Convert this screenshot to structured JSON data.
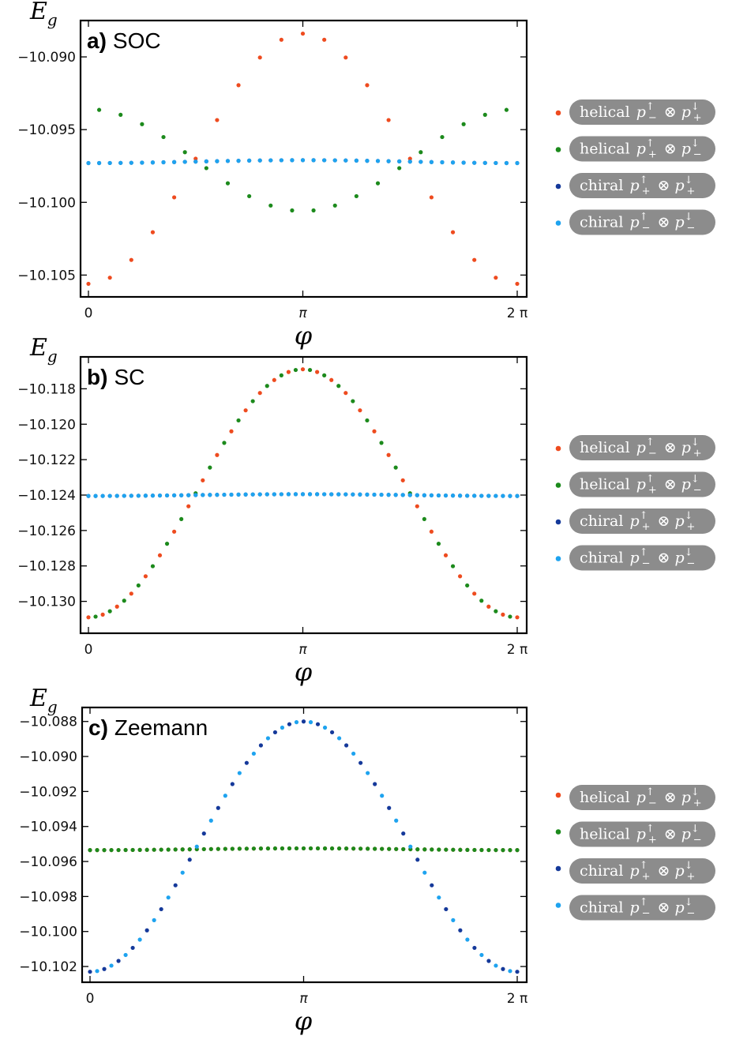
{
  "legend": [
    {
      "family": "helical",
      "base": "p",
      "sub1": "−",
      "sup1": "↑",
      "op": "⊗",
      "sub2": "+",
      "sup2": "↓",
      "color": "#ee4b1f"
    },
    {
      "family": "helical",
      "base": "p",
      "sub1": "+",
      "sup1": "↑",
      "op": "⊗",
      "sub2": "−",
      "sup2": "↓",
      "color": "#1c8a1c"
    },
    {
      "family": "chiral",
      "base": "p",
      "sub1": "+",
      "sup1": "↑",
      "op": "⊗",
      "sub2": "+",
      "sup2": "↓",
      "color": "#15399a"
    },
    {
      "family": "chiral",
      "base": "p",
      "sub1": "−",
      "sup1": "↑",
      "op": "⊗",
      "sub2": "−",
      "sup2": "↓",
      "color": "#1ea3ef"
    }
  ],
  "legend_box_color": "#8c8c8c",
  "chart_data": [
    {
      "type": "scatter",
      "panel": "a)",
      "title": "SOC",
      "ylabel": "E",
      "ylabel_sub": "g",
      "xlabel": "φ",
      "xlim": [
        0,
        6.2832
      ],
      "ylim": [
        -10.1065,
        -10.0875
      ],
      "xticks": [
        0,
        3.14159,
        6.28318
      ],
      "xtick_labels": [
        "0",
        "π",
        "2 π"
      ],
      "yticks": [
        -10.09,
        -10.095,
        -10.1,
        -10.105
      ],
      "ytick_labels": [
        "−10.090",
        "−10.095",
        "−10.100",
        "−10.105"
      ],
      "n_points": 41,
      "series": [
        {
          "name": "helical p−↑⊗p+↓",
          "color": "#ee4b1f",
          "shape": "cosine",
          "min_value": -10.1056,
          "max_value": -10.0884,
          "peak_at": "π",
          "point_stride": 2
        },
        {
          "name": "helical p+↑⊗p−↓",
          "color": "#1c8a1c",
          "shape": "cosine",
          "min_value": -10.1006,
          "max_value": -10.0936,
          "peak_at": "0",
          "point_stride": 2
        },
        {
          "name": "chiral p+↑⊗p+↓",
          "color": "#15399a",
          "shape": "cosine",
          "min_value": -10.0973,
          "max_value": -10.0971,
          "peak_at": "π",
          "point_stride": 1
        },
        {
          "name": "chiral p−↑⊗p−↓",
          "color": "#1ea3ef",
          "shape": "cosine",
          "min_value": -10.0973,
          "max_value": -10.0971,
          "peak_at": "π",
          "point_stride": 1
        }
      ]
    },
    {
      "type": "scatter",
      "panel": "b)",
      "title": "SC",
      "ylabel": "E",
      "ylabel_sub": "g",
      "xlabel": "φ",
      "xlim": [
        0,
        6.2832
      ],
      "ylim": [
        -10.1318,
        -10.1162
      ],
      "xticks": [
        0,
        3.14159,
        6.28318
      ],
      "xtick_labels": [
        "0",
        "π",
        "2 π"
      ],
      "yticks": [
        -10.118,
        -10.12,
        -10.122,
        -10.124,
        -10.126,
        -10.128,
        -10.13
      ],
      "ytick_labels": [
        "−10.118",
        "−10.120",
        "−10.122",
        "−10.124",
        "−10.126",
        "−10.128",
        "−10.130"
      ],
      "n_points": 61,
      "series": [
        {
          "name": "helical p−↑⊗p+↓",
          "color": "#ee4b1f",
          "shape": "cosine",
          "min_value": -10.1309,
          "max_value": -10.1169,
          "peak_at": "π",
          "point_stride": 2
        },
        {
          "name": "helical p+↑⊗p−↓",
          "color": "#1c8a1c",
          "shape": "cosine",
          "min_value": -10.1309,
          "max_value": -10.1169,
          "peak_at": "π",
          "point_stride": 2
        },
        {
          "name": "chiral p+↑⊗p+↓",
          "color": "#15399a",
          "shape": "cosine",
          "min_value": -10.12405,
          "max_value": -10.12395,
          "peak_at": "π",
          "point_stride": 1
        },
        {
          "name": "chiral p−↑⊗p−↓",
          "color": "#1ea3ef",
          "shape": "cosine",
          "min_value": -10.12405,
          "max_value": -10.12395,
          "peak_at": "π",
          "point_stride": 1
        }
      ]
    },
    {
      "type": "scatter",
      "panel": "c)",
      "title": "Zeemann",
      "ylabel": "E",
      "ylabel_sub": "g",
      "xlabel": "φ",
      "xlim": [
        0,
        6.2832
      ],
      "ylim": [
        -10.1029,
        -10.0872
      ],
      "xticks": [
        0,
        3.14159,
        6.28318
      ],
      "xtick_labels": [
        "0",
        "π",
        "2 π"
      ],
      "yticks": [
        -10.088,
        -10.09,
        -10.092,
        -10.094,
        -10.096,
        -10.098,
        -10.1,
        -10.102
      ],
      "ytick_labels": [
        "−10.088",
        "−10.090",
        "−10.092",
        "−10.094",
        "−10.096",
        "−10.098",
        "−10.100",
        "−10.102"
      ],
      "n_points": 61,
      "series": [
        {
          "name": "helical p−↑⊗p+↓",
          "color": "#ee4b1f",
          "shape": "cosine",
          "min_value": -10.09535,
          "max_value": -10.09525,
          "peak_at": "π",
          "point_stride": 1
        },
        {
          "name": "helical p+↑⊗p−↓",
          "color": "#1c8a1c",
          "shape": "cosine",
          "min_value": -10.09535,
          "max_value": -10.09525,
          "peak_at": "π",
          "point_stride": 1
        },
        {
          "name": "chiral p+↑⊗p+↓",
          "color": "#15399a",
          "shape": "cosine",
          "min_value": -10.1023,
          "max_value": -10.088,
          "peak_at": "π",
          "point_stride": 2
        },
        {
          "name": "chiral p−↑⊗p−↓",
          "color": "#1ea3ef",
          "shape": "cosine",
          "min_value": -10.1023,
          "max_value": -10.088,
          "peak_at": "π",
          "point_stride": 2
        }
      ]
    }
  ]
}
